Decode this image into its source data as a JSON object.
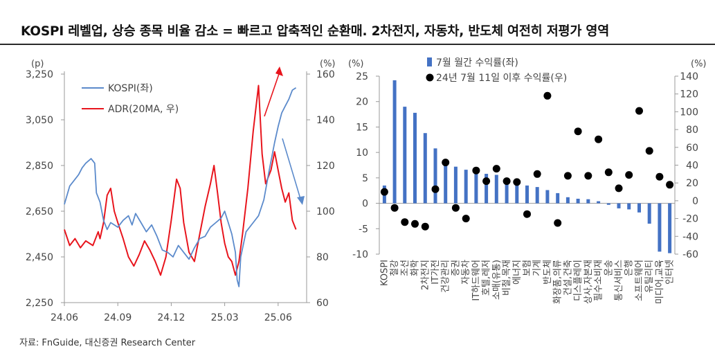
{
  "title": "KOSPI 레벨업, 상승 종목 비율 감소 = 빠르고 압축적인 순환매. 2차전지, 자동차, 반도체 여전히 저평가 영역",
  "source": "자료: FnGuide, 대신증권 Research Center",
  "colors": {
    "kospi": "#5B8ACB",
    "adr": "#E8141C",
    "bar": "#4472C4",
    "dot": "#000000",
    "axis": "#999999"
  },
  "chart_data": [
    {
      "type": "line",
      "left_unit": "(p)",
      "right_unit": "(%)",
      "ylim_left": [
        2250,
        3250
      ],
      "yticks_left": [
        "3,250",
        "3,050",
        "2,850",
        "2,650",
        "2,450",
        "2,250"
      ],
      "ylim_right": [
        60,
        160
      ],
      "yticks_right": [
        "160",
        "140",
        "120",
        "100",
        "80",
        "60"
      ],
      "xticks": [
        "24.06",
        "24.09",
        "24.12",
        "25.03",
        "25.06"
      ],
      "series": [
        {
          "name": "KOSPI(좌)",
          "axis": "left",
          "points": [
            [
              0,
              2680
            ],
            [
              0.3,
              2760
            ],
            [
              0.5,
              2780
            ],
            [
              0.8,
              2810
            ],
            [
              1.0,
              2840
            ],
            [
              1.2,
              2860
            ],
            [
              1.5,
              2880
            ],
            [
              1.7,
              2860
            ],
            [
              1.8,
              2730
            ],
            [
              2.0,
              2690
            ],
            [
              2.2,
              2610
            ],
            [
              2.4,
              2570
            ],
            [
              2.6,
              2600
            ],
            [
              2.8,
              2590
            ],
            [
              3.0,
              2580
            ],
            [
              3.3,
              2610
            ],
            [
              3.6,
              2630
            ],
            [
              3.8,
              2590
            ],
            [
              4.0,
              2640
            ],
            [
              4.3,
              2600
            ],
            [
              4.6,
              2560
            ],
            [
              4.9,
              2590
            ],
            [
              5.2,
              2540
            ],
            [
              5.5,
              2480
            ],
            [
              5.8,
              2470
            ],
            [
              6.1,
              2450
            ],
            [
              6.4,
              2500
            ],
            [
              6.7,
              2470
            ],
            [
              7.0,
              2440
            ],
            [
              7.3,
              2490
            ],
            [
              7.6,
              2530
            ],
            [
              7.9,
              2540
            ],
            [
              8.2,
              2580
            ],
            [
              8.5,
              2600
            ],
            [
              8.8,
              2620
            ],
            [
              9.0,
              2650
            ],
            [
              9.2,
              2600
            ],
            [
              9.4,
              2550
            ],
            [
              9.6,
              2470
            ],
            [
              9.7,
              2350
            ],
            [
              9.8,
              2320
            ],
            [
              9.9,
              2450
            ],
            [
              10.2,
              2560
            ],
            [
              10.6,
              2600
            ],
            [
              10.9,
              2630
            ],
            [
              11.2,
              2700
            ],
            [
              11.5,
              2830
            ],
            [
              11.8,
              2950
            ],
            [
              12.0,
              3020
            ],
            [
              12.2,
              3080
            ],
            [
              12.4,
              3110
            ],
            [
              12.6,
              3140
            ],
            [
              12.8,
              3180
            ],
            [
              13.0,
              3190
            ]
          ]
        },
        {
          "name": "ADR(20MA, 우)",
          "axis": "right",
          "points": [
            [
              0,
              92
            ],
            [
              0.3,
              85
            ],
            [
              0.6,
              88
            ],
            [
              0.9,
              84
            ],
            [
              1.2,
              87
            ],
            [
              1.6,
              85
            ],
            [
              1.9,
              91
            ],
            [
              2.0,
              88
            ],
            [
              2.2,
              95
            ],
            [
              2.4,
              107
            ],
            [
              2.6,
              110
            ],
            [
              2.8,
              100
            ],
            [
              3.0,
              95
            ],
            [
              3.3,
              88
            ],
            [
              3.6,
              80
            ],
            [
              3.9,
              76
            ],
            [
              4.2,
              81
            ],
            [
              4.5,
              87
            ],
            [
              4.8,
              83
            ],
            [
              5.1,
              78
            ],
            [
              5.4,
              72
            ],
            [
              5.7,
              80
            ],
            [
              6.0,
              96
            ],
            [
              6.3,
              114
            ],
            [
              6.5,
              110
            ],
            [
              6.7,
              95
            ],
            [
              7.0,
              82
            ],
            [
              7.3,
              78
            ],
            [
              7.6,
              90
            ],
            [
              7.9,
              102
            ],
            [
              8.2,
              112
            ],
            [
              8.4,
              120
            ],
            [
              8.6,
              108
            ],
            [
              8.8,
              95
            ],
            [
              9.0,
              86
            ],
            [
              9.2,
              80
            ],
            [
              9.4,
              78
            ],
            [
              9.6,
              72
            ],
            [
              9.8,
              78
            ],
            [
              10.0,
              90
            ],
            [
              10.3,
              110
            ],
            [
              10.6,
              135
            ],
            [
              10.9,
              155
            ],
            [
              11.1,
              125
            ],
            [
              11.3,
              112
            ],
            [
              11.6,
              118
            ],
            [
              11.8,
              126
            ],
            [
              12.0,
              118
            ],
            [
              12.2,
              110
            ],
            [
              12.4,
              104
            ],
            [
              12.6,
              108
            ],
            [
              12.8,
              96
            ],
            [
              13.0,
              92
            ]
          ]
        }
      ],
      "legend": "top-left"
    },
    {
      "type": "bar",
      "left_unit": "(%)",
      "right_unit": "(%)",
      "ylim_left": [
        -10,
        25
      ],
      "yticks_left": [
        "25",
        "20",
        "15",
        "10",
        "5",
        "0",
        "-5",
        "-10"
      ],
      "ylim_right": [
        -60,
        140
      ],
      "yticks_right": [
        "140",
        "120",
        "100",
        "80",
        "60",
        "40",
        "20",
        "0",
        "-20",
        "-40",
        "-60"
      ],
      "categories": [
        "KOSPI",
        "철강",
        "조선",
        "화학",
        "2차전지",
        "IT가전",
        "건강관리",
        "증권",
        "자동차",
        "IT하드웨어",
        "호텔,레저",
        "소매(유통)",
        "비철,목재",
        "에너지",
        "보험",
        "기계",
        "반도체",
        "화장품,의류",
        "건설,건축",
        "디스플레이",
        "상사,자본재",
        "필수소비재",
        "운송",
        "통신서비스",
        "은행",
        "소프트웨어",
        "유틸리티",
        "미디어,교육",
        "인터넷"
      ],
      "series": [
        {
          "name": "7월 월간 수익률(좌)",
          "axis": "left",
          "values": [
            3.5,
            24.2,
            19.0,
            17.8,
            13.8,
            10.8,
            8.2,
            7.2,
            6.6,
            6.8,
            5.8,
            5.6,
            4.6,
            4.6,
            3.5,
            3.2,
            2.6,
            2.0,
            1.2,
            0.9,
            0.8,
            0.4,
            -0.3,
            -1.0,
            -1.2,
            -1.8,
            -4.0,
            -9.5,
            -9.8
          ]
        },
        {
          "name": "24년 7월 11일 이후 수익률(우)",
          "axis": "right",
          "values": [
            10,
            -8,
            -24,
            -26,
            -29,
            13,
            43,
            -8,
            -20,
            34,
            22,
            36,
            22,
            21,
            -15,
            30,
            118,
            -25,
            28,
            78,
            28,
            69,
            32,
            14,
            29,
            101,
            56,
            27,
            18
          ]
        }
      ],
      "legend": "top"
    }
  ]
}
